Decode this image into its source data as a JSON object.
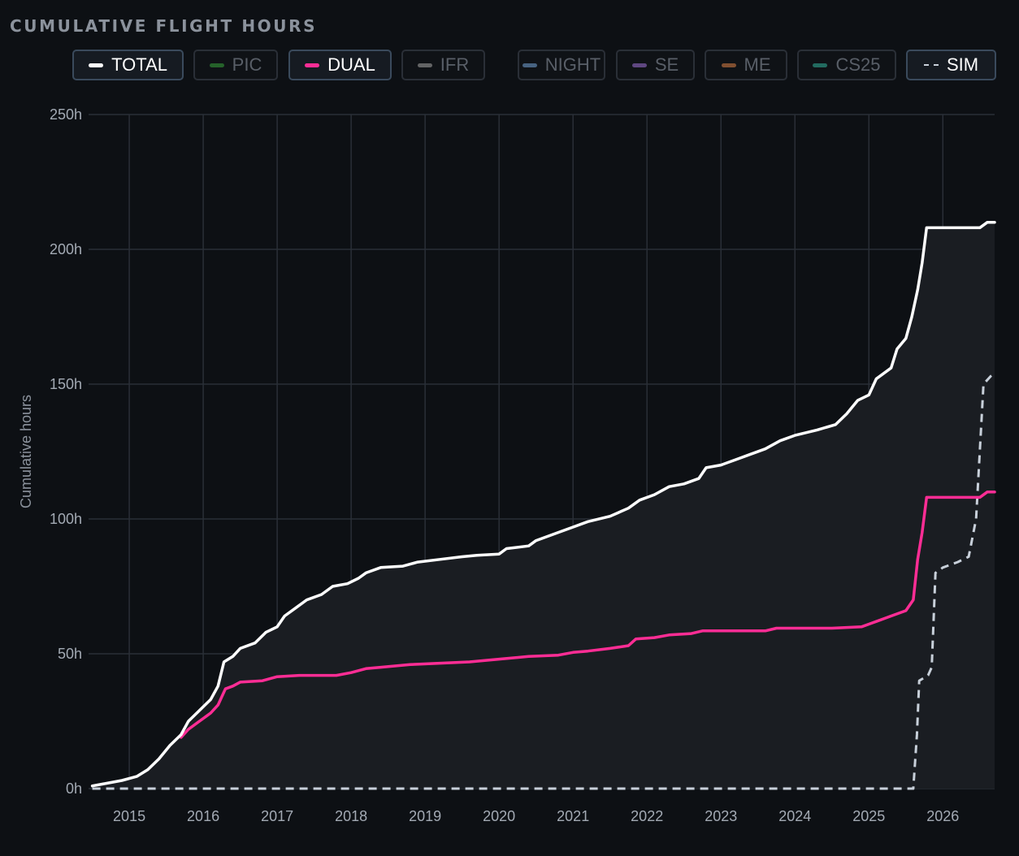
{
  "title": "CUMULATIVE FLIGHT HOURS",
  "legend": [
    {
      "label": "TOTAL",
      "color": "#ffffff",
      "active": true,
      "style": "solid"
    },
    {
      "label": "PIC",
      "color": "#2e7d32",
      "active": false,
      "style": "solid"
    },
    {
      "label": "DUAL",
      "color": "#ff2d95",
      "active": true,
      "style": "solid"
    },
    {
      "label": "IFR",
      "color": "#808080",
      "active": false,
      "style": "solid"
    },
    {
      "label": "NIGHT",
      "color": "#5b7fa6",
      "active": false,
      "style": "solid"
    },
    {
      "label": "SE",
      "color": "#7b5aa6",
      "active": false,
      "style": "solid"
    },
    {
      "label": "ME",
      "color": "#a8643a",
      "active": false,
      "style": "solid"
    },
    {
      "label": "CS25",
      "color": "#2a8a7a",
      "active": false,
      "style": "solid"
    },
    {
      "label": "SIM",
      "color": "#c8d0da",
      "active": true,
      "style": "dashed"
    }
  ],
  "chart_data": {
    "type": "line",
    "title": "CUMULATIVE FLIGHT HOURS",
    "xlabel": "",
    "ylabel": "Cumulative hours",
    "xlim": [
      2014.45,
      2026.7
    ],
    "ylim": [
      0,
      250
    ],
    "x_ticks": [
      "2015",
      "2016",
      "2017",
      "2018",
      "2019",
      "2020",
      "2021",
      "2022",
      "2023",
      "2024",
      "2025",
      "2026"
    ],
    "y_ticks": [
      "0h",
      "50h",
      "100h",
      "150h",
      "200h",
      "250h"
    ],
    "grid": true,
    "series": [
      {
        "name": "TOTAL",
        "color": "#ffffff",
        "style": "solid",
        "fill": true,
        "points": [
          [
            2014.5,
            1
          ],
          [
            2014.7,
            2
          ],
          [
            2014.9,
            3
          ],
          [
            2015.1,
            4.5
          ],
          [
            2015.25,
            7
          ],
          [
            2015.4,
            11
          ],
          [
            2015.55,
            16
          ],
          [
            2015.7,
            20
          ],
          [
            2015.8,
            25
          ],
          [
            2015.95,
            29
          ],
          [
            2016.1,
            33
          ],
          [
            2016.2,
            38
          ],
          [
            2016.28,
            47
          ],
          [
            2016.4,
            49
          ],
          [
            2016.5,
            52
          ],
          [
            2016.7,
            54
          ],
          [
            2016.85,
            58
          ],
          [
            2017.0,
            60
          ],
          [
            2017.1,
            64
          ],
          [
            2017.25,
            67
          ],
          [
            2017.4,
            70
          ],
          [
            2017.6,
            72
          ],
          [
            2017.75,
            75
          ],
          [
            2017.95,
            76
          ],
          [
            2018.1,
            78
          ],
          [
            2018.2,
            80
          ],
          [
            2018.4,
            82
          ],
          [
            2018.7,
            82.5
          ],
          [
            2018.9,
            84
          ],
          [
            2019.2,
            85
          ],
          [
            2019.5,
            86
          ],
          [
            2019.7,
            86.5
          ],
          [
            2020.0,
            87
          ],
          [
            2020.1,
            89
          ],
          [
            2020.4,
            90
          ],
          [
            2020.5,
            92
          ],
          [
            2020.8,
            95
          ],
          [
            2021.0,
            97
          ],
          [
            2021.2,
            99
          ],
          [
            2021.5,
            101
          ],
          [
            2021.75,
            104
          ],
          [
            2021.9,
            107
          ],
          [
            2022.1,
            109
          ],
          [
            2022.3,
            112
          ],
          [
            2022.5,
            113
          ],
          [
            2022.7,
            115
          ],
          [
            2022.8,
            119
          ],
          [
            2023.0,
            120
          ],
          [
            2023.2,
            122
          ],
          [
            2023.4,
            124
          ],
          [
            2023.6,
            126
          ],
          [
            2023.8,
            129
          ],
          [
            2024.0,
            131
          ],
          [
            2024.3,
            133
          ],
          [
            2024.55,
            135
          ],
          [
            2024.7,
            139
          ],
          [
            2024.85,
            144
          ],
          [
            2025.0,
            146
          ],
          [
            2025.1,
            152
          ],
          [
            2025.3,
            156
          ],
          [
            2025.38,
            163
          ],
          [
            2025.5,
            167
          ],
          [
            2025.58,
            175
          ],
          [
            2025.66,
            185
          ],
          [
            2025.72,
            195
          ],
          [
            2025.78,
            208
          ],
          [
            2026.0,
            208
          ],
          [
            2026.3,
            208
          ],
          [
            2026.5,
            208
          ],
          [
            2026.6,
            210
          ],
          [
            2026.7,
            210
          ]
        ]
      },
      {
        "name": "DUAL",
        "color": "#ff2d95",
        "style": "solid",
        "fill": false,
        "points": [
          [
            2015.7,
            19
          ],
          [
            2015.8,
            22
          ],
          [
            2015.95,
            25
          ],
          [
            2016.1,
            28
          ],
          [
            2016.2,
            31
          ],
          [
            2016.3,
            37
          ],
          [
            2016.4,
            38
          ],
          [
            2016.5,
            39.5
          ],
          [
            2016.8,
            40
          ],
          [
            2017.0,
            41.5
          ],
          [
            2017.3,
            42
          ],
          [
            2017.5,
            42
          ],
          [
            2017.8,
            42
          ],
          [
            2018.0,
            43
          ],
          [
            2018.2,
            44.5
          ],
          [
            2018.4,
            45
          ],
          [
            2018.8,
            46
          ],
          [
            2019.2,
            46.5
          ],
          [
            2019.6,
            47
          ],
          [
            2020.0,
            48
          ],
          [
            2020.4,
            49
          ],
          [
            2020.8,
            49.5
          ],
          [
            2021.0,
            50.5
          ],
          [
            2021.2,
            51
          ],
          [
            2021.5,
            52
          ],
          [
            2021.75,
            53
          ],
          [
            2021.85,
            55.5
          ],
          [
            2022.1,
            56
          ],
          [
            2022.3,
            57
          ],
          [
            2022.6,
            57.5
          ],
          [
            2022.75,
            58.5
          ],
          [
            2023.0,
            58.5
          ],
          [
            2023.6,
            58.5
          ],
          [
            2023.75,
            59.5
          ],
          [
            2024.0,
            59.5
          ],
          [
            2024.5,
            59.5
          ],
          [
            2024.9,
            60
          ],
          [
            2025.0,
            61
          ],
          [
            2025.1,
            62
          ],
          [
            2025.3,
            64
          ],
          [
            2025.5,
            66
          ],
          [
            2025.6,
            70
          ],
          [
            2025.66,
            85
          ],
          [
            2025.72,
            95
          ],
          [
            2025.78,
            108
          ],
          [
            2026.0,
            108
          ],
          [
            2026.5,
            108
          ],
          [
            2026.6,
            110
          ],
          [
            2026.7,
            110
          ]
        ]
      },
      {
        "name": "SIM",
        "color": "#c8d0da",
        "style": "dashed",
        "fill": false,
        "points": [
          [
            2014.5,
            0
          ],
          [
            2025.0,
            0
          ],
          [
            2025.6,
            0
          ],
          [
            2025.65,
            20
          ],
          [
            2025.68,
            40
          ],
          [
            2025.8,
            42
          ],
          [
            2025.85,
            45
          ],
          [
            2025.9,
            80
          ],
          [
            2026.0,
            82
          ],
          [
            2026.2,
            84
          ],
          [
            2026.35,
            86
          ],
          [
            2026.45,
            100
          ],
          [
            2026.55,
            150
          ],
          [
            2026.65,
            153
          ],
          [
            2026.7,
            154
          ]
        ]
      }
    ]
  }
}
